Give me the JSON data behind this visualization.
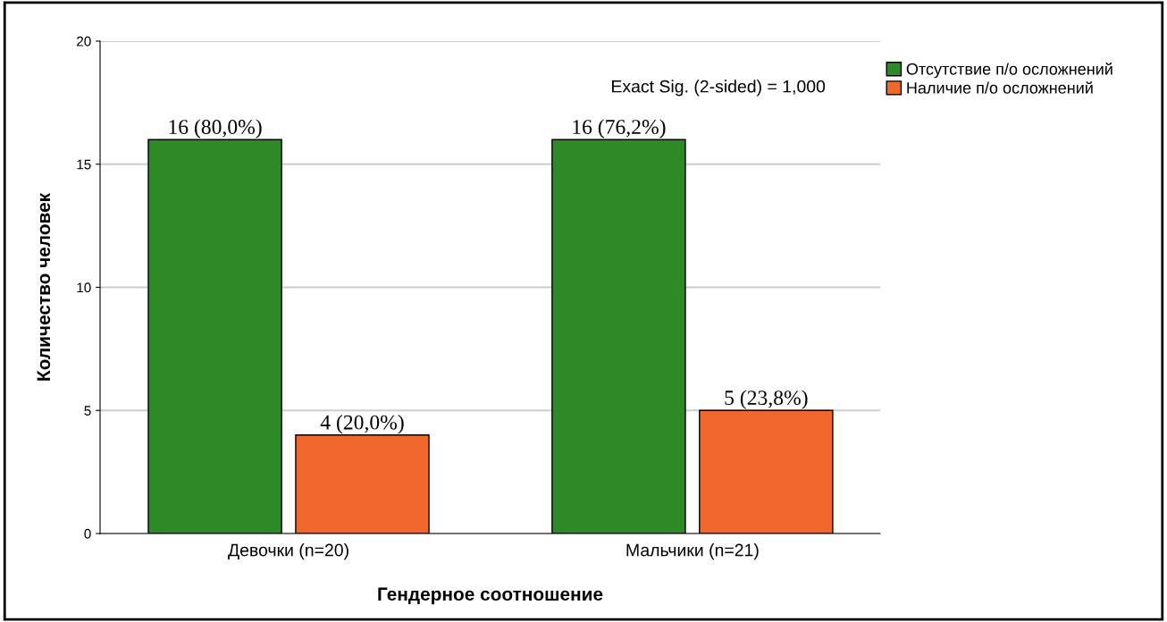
{
  "chart_data": {
    "type": "bar",
    "xlabel": "Гендерное соотношение",
    "ylabel": "Количество человек",
    "categories": [
      "Девочки (n=20)",
      "Мальчики (n=21)"
    ],
    "series": [
      {
        "name": "Отсутствие п/о осложнений",
        "color": "#2e8a27",
        "values": [
          16,
          16
        ],
        "value_labels": [
          "16 (80,0%)",
          "16 (76,2%)"
        ]
      },
      {
        "name": "Наличие п/о осложнений",
        "color": "#f0682c",
        "values": [
          4,
          5
        ],
        "value_labels": [
          "4 (20,0%)",
          "5 (23,8%)"
        ]
      }
    ],
    "ylim": [
      0,
      20
    ],
    "yticks": [
      0,
      5,
      10,
      15,
      20
    ],
    "grid": "y",
    "legend": "top right",
    "annotations": [
      "Exact Sig. (2-sided) = 1,000"
    ]
  }
}
